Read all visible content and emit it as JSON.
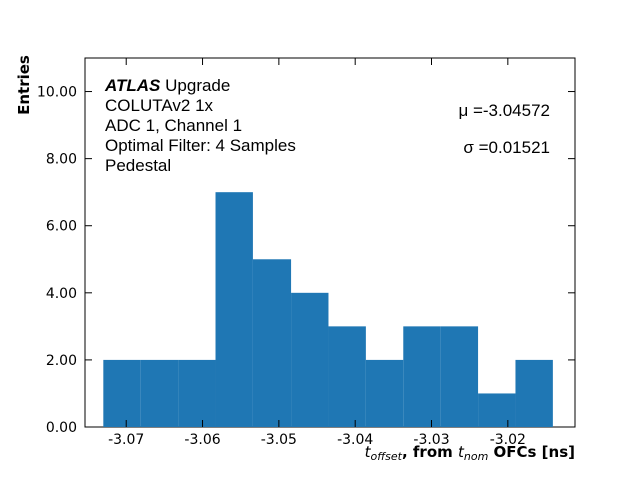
{
  "chart_data": {
    "type": "histogram",
    "bins": [
      -3.073,
      -3.0681,
      -3.0632,
      -3.0583,
      -3.0534,
      -3.0484,
      -3.0435,
      -3.0386,
      -3.0337,
      -3.0288,
      -3.0239,
      -3.019,
      -3.0141
    ],
    "values": [
      2,
      2,
      2,
      7,
      5,
      4,
      3,
      2,
      3,
      3,
      1,
      2
    ],
    "color": "#1f77b4",
    "xlim": [
      -3.0754,
      -3.0112
    ],
    "ylim": [
      0,
      11
    ],
    "xticks": [
      -3.07,
      -3.06,
      -3.05,
      -3.04,
      -3.03,
      -3.02
    ],
    "yticks": [
      {
        "value": 0,
        "label": "0.00"
      },
      {
        "value": 2,
        "label": "2.00"
      },
      {
        "value": 4,
        "label": "4.00"
      },
      {
        "value": 6,
        "label": "6.00"
      },
      {
        "value": 8,
        "label": "8.00"
      },
      {
        "value": 10,
        "label": "10.00"
      }
    ],
    "y_label": "Entries",
    "x_label": {
      "t1": "t",
      "sub1": "offset",
      "mid": ", from ",
      "t2": "t",
      "sub2": "nom",
      "end": " OFCs [ns]"
    },
    "experiment": "ATLAS",
    "experiment_suffix": " Upgrade",
    "annotations": [
      "COLUTAv2 1x",
      "ADC 1, Channel 1",
      "Optimal Filter: 4 Samples",
      "Pedestal"
    ],
    "stats": [
      "μ =-3.04572",
      "σ =0.01521"
    ]
  }
}
